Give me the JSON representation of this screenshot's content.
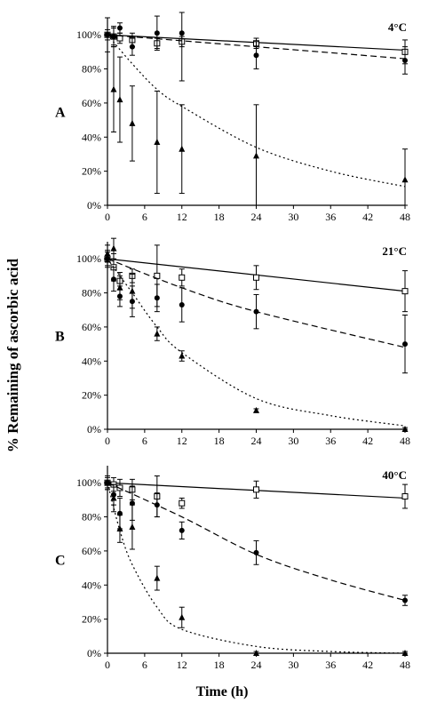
{
  "figure": {
    "ylabel": "% Remaining of ascorbic acid",
    "xlabel": "Time (h)"
  },
  "chart_data": [
    {
      "type": "line",
      "panel": "A",
      "temperature": "4°C",
      "x_ticks": [
        0,
        6,
        12,
        18,
        24,
        30,
        36,
        42,
        48
      ],
      "y_ticks": [
        "0%",
        "20%",
        "40%",
        "60%",
        "80%",
        "100%"
      ],
      "xlim": [
        0,
        48
      ],
      "ylim": [
        0,
        110
      ],
      "series": [
        {
          "style": "solid",
          "marker": "square",
          "curve": [
            [
              0,
              100
            ],
            [
              48,
              91
            ]
          ],
          "points": [
            [
              0,
              100
            ],
            [
              1,
              99
            ],
            [
              2,
              98
            ],
            [
              4,
              97
            ],
            [
              8,
              95
            ],
            [
              12,
              96
            ],
            [
              24,
              95
            ],
            [
              48,
              90
            ]
          ],
          "errors": [
            3,
            5,
            3,
            4,
            3,
            3,
            3,
            7
          ]
        },
        {
          "style": "dashed",
          "marker": "circle",
          "curve": [
            [
              0,
              100
            ],
            [
              48,
              86
            ]
          ],
          "points": [
            [
              0,
              100
            ],
            [
              1,
              99
            ],
            [
              2,
              104
            ],
            [
              4,
              93
            ],
            [
              8,
              101
            ],
            [
              12,
              101
            ],
            [
              24,
              88
            ],
            [
              48,
              85
            ]
          ],
          "errors": [
            10,
            6,
            3,
            5,
            10,
            28,
            8,
            8
          ]
        },
        {
          "style": "dotted",
          "marker": "triangle",
          "curve": [
            [
              0,
              100
            ],
            [
              4,
              83
            ],
            [
              8,
              68
            ],
            [
              12,
              58
            ],
            [
              24,
              34
            ],
            [
              36,
              20
            ],
            [
              48,
              11
            ]
          ],
          "points": [
            [
              1,
              68
            ],
            [
              2,
              62
            ],
            [
              4,
              48
            ],
            [
              8,
              37
            ],
            [
              12,
              33
            ],
            [
              24,
              29
            ],
            [
              48,
              15
            ]
          ],
          "errors": [
            25,
            25,
            22,
            30,
            26,
            30,
            18
          ]
        }
      ]
    },
    {
      "type": "line",
      "panel": "B",
      "temperature": "21°C",
      "x_ticks": [
        0,
        6,
        12,
        18,
        24,
        30,
        36,
        42,
        48
      ],
      "y_ticks": [
        "0%",
        "20%",
        "40%",
        "60%",
        "80%",
        "100%"
      ],
      "xlim": [
        0,
        48
      ],
      "ylim": [
        0,
        110
      ],
      "series": [
        {
          "style": "solid",
          "marker": "square",
          "curve": [
            [
              0,
              100
            ],
            [
              48,
              81
            ]
          ],
          "points": [
            [
              0,
              100
            ],
            [
              1,
              95
            ],
            [
              2,
              87
            ],
            [
              4,
              90
            ],
            [
              8,
              90
            ],
            [
              12,
              89
            ],
            [
              24,
              89
            ],
            [
              48,
              81
            ]
          ],
          "errors": [
            4,
            8,
            5,
            4,
            18,
            5,
            7,
            12
          ]
        },
        {
          "style": "dashed",
          "marker": "circle",
          "curve": [
            [
              0,
              100
            ],
            [
              12,
              83
            ],
            [
              24,
              69
            ],
            [
              48,
              48
            ]
          ],
          "points": [
            [
              0,
              100
            ],
            [
              1,
              88
            ],
            [
              2,
              78
            ],
            [
              4,
              75
            ],
            [
              8,
              77
            ],
            [
              12,
              73
            ],
            [
              24,
              69
            ],
            [
              48,
              50
            ]
          ],
          "errors": [
            5,
            7,
            6,
            9,
            8,
            10,
            10,
            17
          ]
        },
        {
          "style": "dotted",
          "marker": "triangle",
          "curve": [
            [
              0,
              100
            ],
            [
              4,
              80
            ],
            [
              8,
              60
            ],
            [
              12,
              45
            ],
            [
              24,
              18
            ],
            [
              36,
              8
            ],
            [
              48,
              2
            ]
          ],
          "points": [
            [
              0,
              103
            ],
            [
              1,
              106
            ],
            [
              2,
              83
            ],
            [
              4,
              81
            ],
            [
              8,
              56
            ],
            [
              12,
              43
            ],
            [
              24,
              11
            ],
            [
              48,
              0
            ]
          ],
          "errors": [
            5,
            6,
            7,
            10,
            4,
            3,
            1,
            1
          ]
        }
      ]
    },
    {
      "type": "line",
      "panel": "C",
      "temperature": "40°C",
      "x_ticks": [
        0,
        6,
        12,
        18,
        24,
        30,
        36,
        42,
        48
      ],
      "y_ticks": [
        "0%",
        "20%",
        "40%",
        "60%",
        "80%",
        "100%"
      ],
      "xlim": [
        0,
        48
      ],
      "ylim": [
        0,
        110
      ],
      "series": [
        {
          "style": "solid",
          "marker": "square",
          "curve": [
            [
              0,
              100
            ],
            [
              48,
              91
            ]
          ],
          "points": [
            [
              0,
              100
            ],
            [
              1,
              99
            ],
            [
              2,
              97
            ],
            [
              4,
              96
            ],
            [
              8,
              92
            ],
            [
              12,
              88
            ],
            [
              24,
              96
            ],
            [
              48,
              92
            ]
          ],
          "errors": [
            4,
            4,
            5,
            6,
            12,
            3,
            5,
            7
          ]
        },
        {
          "style": "dashed",
          "marker": "circle",
          "curve": [
            [
              0,
              100
            ],
            [
              12,
              80
            ],
            [
              24,
              58
            ],
            [
              36,
              43
            ],
            [
              48,
              31
            ]
          ],
          "points": [
            [
              0,
              100
            ],
            [
              1,
              93
            ],
            [
              2,
              82
            ],
            [
              4,
              88
            ],
            [
              8,
              87
            ],
            [
              12,
              72
            ],
            [
              24,
              59
            ],
            [
              48,
              31
            ]
          ],
          "errors": [
            4,
            6,
            9,
            10,
            7,
            5,
            7,
            3
          ]
        },
        {
          "style": "dotted",
          "marker": "triangle",
          "curve": [
            [
              0,
              100
            ],
            [
              2,
              72
            ],
            [
              4,
              52
            ],
            [
              8,
              27
            ],
            [
              12,
              14
            ],
            [
              24,
              4
            ],
            [
              36,
              1
            ],
            [
              48,
              0
            ]
          ],
          "points": [
            [
              0,
              100
            ],
            [
              1,
              91
            ],
            [
              2,
              73
            ],
            [
              4,
              74
            ],
            [
              8,
              44
            ],
            [
              12,
              21
            ],
            [
              24,
              0
            ],
            [
              48,
              0
            ]
          ],
          "errors": [
            3,
            8,
            8,
            13,
            7,
            6,
            1,
            1
          ]
        }
      ]
    }
  ]
}
